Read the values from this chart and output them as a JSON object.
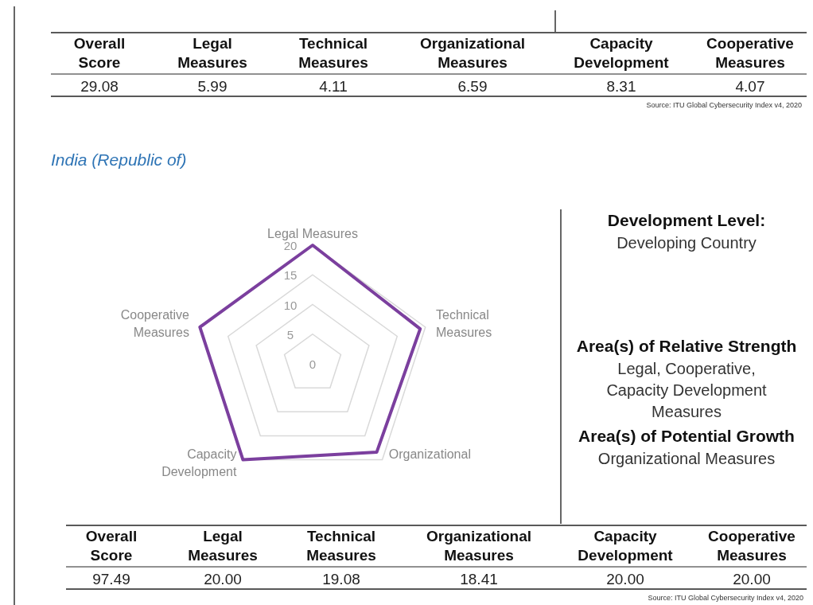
{
  "chart_data": [
    {
      "type": "other",
      "categories": [
        "Overall Score",
        "Legal Measures",
        "Technical Measures",
        "Organizational Measures",
        "Capacity Development",
        "Cooperative Measures"
      ],
      "value_labels": [
        "29.08",
        "5.99",
        "4.11",
        "6.59",
        "8.31",
        "4.07"
      ],
      "annotations": [
        "Source: ITU Global Cybersecurity Index v4, 2020"
      ]
    },
    {
      "type": "radar",
      "title": "India (Republic of)",
      "categories": [
        "Legal Measures",
        "Technical Measures",
        "Organizational",
        "Capacity Development",
        "Cooperative Measures"
      ],
      "series": [
        {
          "color": "#7b3f9e",
          "values": [
            20,
            19.08,
            18.41,
            20,
            20
          ]
        }
      ],
      "ylim": [
        0,
        20
      ],
      "yticks": [
        0,
        5,
        10,
        15,
        20
      ],
      "grid": true
    },
    {
      "type": "other",
      "annotations": [
        "Development Level:",
        "Developing Country",
        "Area(s) of Relative Strength",
        "Legal, Cooperative, Capacity Development Measures",
        "Area(s) of Potential Growth",
        "Organizational Measures"
      ]
    },
    {
      "type": "other",
      "categories": [
        "Overall Score",
        "Legal Measures",
        "Technical Measures",
        "Organizational Measures",
        "Capacity Development",
        "Cooperative Measures"
      ],
      "value_labels": [
        "97.49",
        "20.00",
        "19.08",
        "18.41",
        "20.00",
        "20.00"
      ],
      "annotations": [
        "Source: ITU Global Cybersecurity Index v4, 2020"
      ]
    }
  ]
}
